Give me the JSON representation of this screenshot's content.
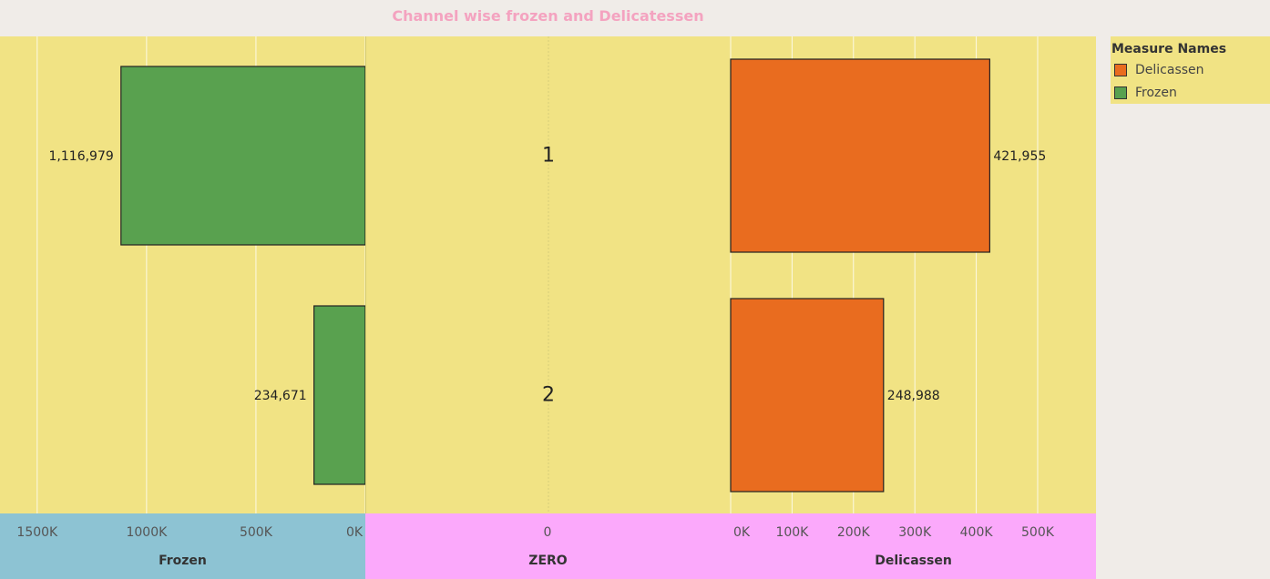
{
  "title": "Channel wise frozen and Delicatessen",
  "legend": {
    "title": "Measure Names",
    "items": [
      {
        "label": "Delicassen",
        "color": "#e96c1f"
      },
      {
        "label": "Frozen",
        "color": "#59a14f"
      }
    ]
  },
  "colors": {
    "plot_background": "#f1e384",
    "frozen_axis_background": "#8dc3d3",
    "other_axis_background": "#fba9fb",
    "title_color": "#f4a3c0"
  },
  "chart_data": {
    "type": "bar",
    "orientation": "horizontal",
    "categories": [
      "1",
      "2"
    ],
    "panels": [
      {
        "name": "Frozen",
        "axis_label": "Frozen",
        "reversed": true,
        "xlim": [
          0,
          1670000
        ],
        "ticks": [
          {
            "v": 1500000,
            "label": "1500K"
          },
          {
            "v": 1000000,
            "label": "1000K"
          },
          {
            "v": 500000,
            "label": "500K"
          },
          {
            "v": 0,
            "label": "0K"
          }
        ],
        "series": [
          {
            "name": "Frozen",
            "values": [
              1116979,
              234671
            ],
            "labels": [
              "1,116,979",
              "234,671"
            ]
          }
        ]
      },
      {
        "name": "ZERO",
        "axis_label": "ZERO",
        "ticks": [
          {
            "v": 0,
            "label": "0"
          }
        ]
      },
      {
        "name": "Delicassen",
        "axis_label": "Delicassen",
        "reversed": false,
        "xlim": [
          0,
          595000
        ],
        "ticks": [
          {
            "v": 0,
            "label": "0K"
          },
          {
            "v": 100000,
            "label": "100K"
          },
          {
            "v": 200000,
            "label": "200K"
          },
          {
            "v": 300000,
            "label": "300K"
          },
          {
            "v": 400000,
            "label": "400K"
          },
          {
            "v": 500000,
            "label": "500K"
          }
        ],
        "series": [
          {
            "name": "Delicassen",
            "values": [
              421955,
              248988
            ],
            "labels": [
              "421,955",
              "248,988"
            ]
          }
        ]
      }
    ],
    "grid": true,
    "legend_position": "right"
  }
}
